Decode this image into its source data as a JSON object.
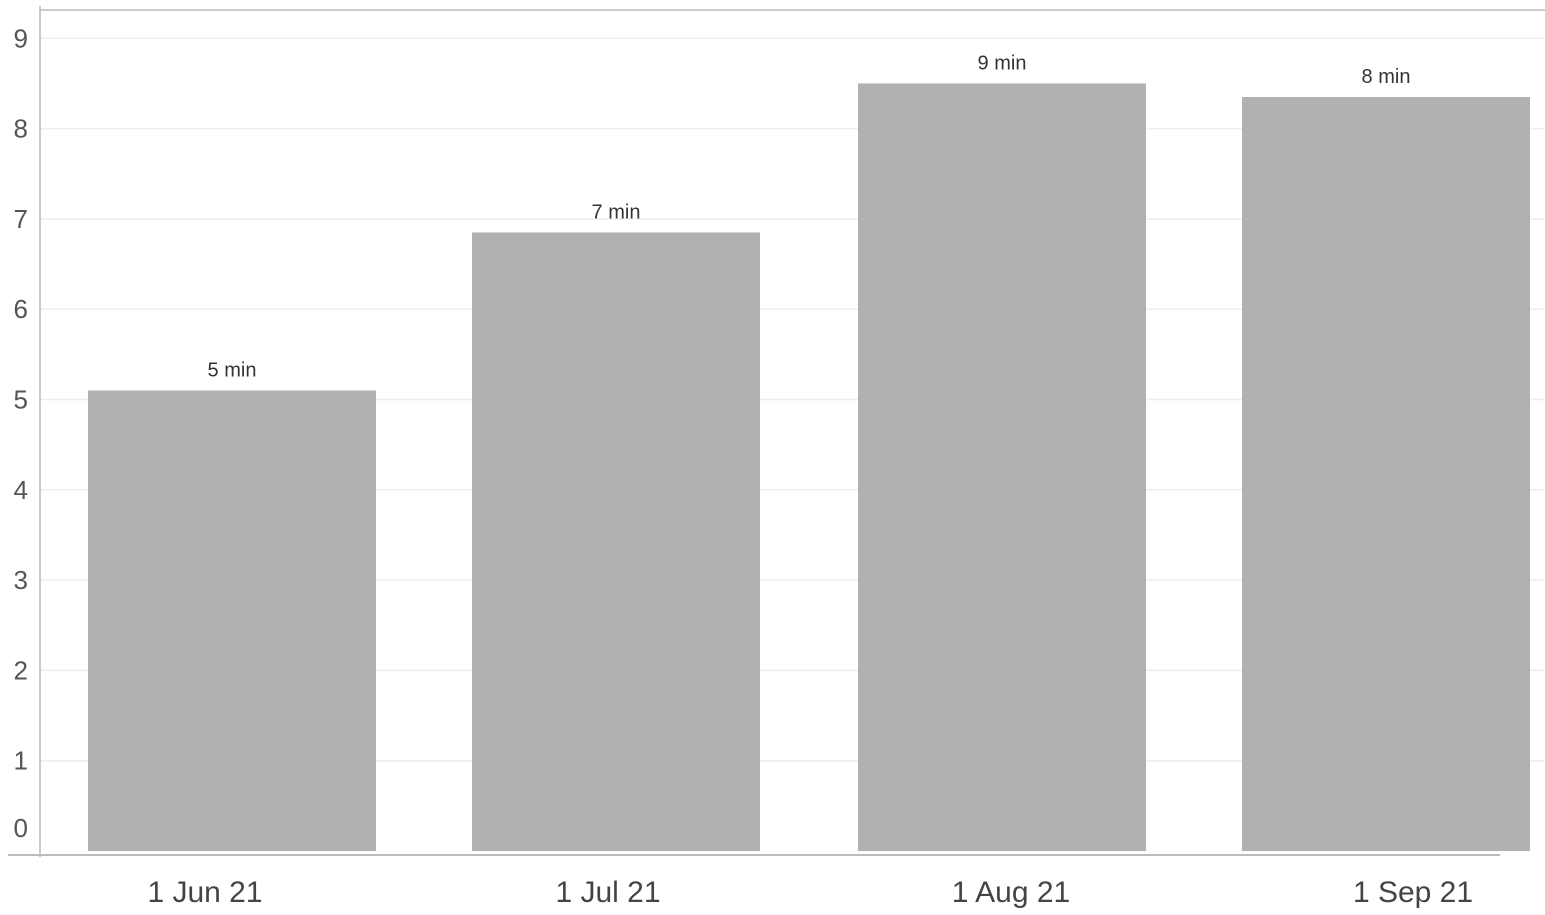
{
  "chart_data": {
    "type": "bar",
    "categories": [
      "1 Jun 21",
      "1 Jul 21",
      "1 Aug 21",
      "1 Sep 21"
    ],
    "values": [
      5.1,
      6.85,
      8.5,
      8.35
    ],
    "data_labels": [
      "5 min",
      "7 min",
      "9 min",
      "8 min"
    ],
    "yticks": [
      "0",
      "1",
      "2",
      "3",
      "4",
      "5",
      "6",
      "7",
      "8",
      "9"
    ],
    "ylim": [
      0,
      9.4
    ],
    "grid": true,
    "colors": {
      "bar": "#b1b1b1",
      "grid": "#eeeeee",
      "axis": "#bbbbbb"
    }
  }
}
